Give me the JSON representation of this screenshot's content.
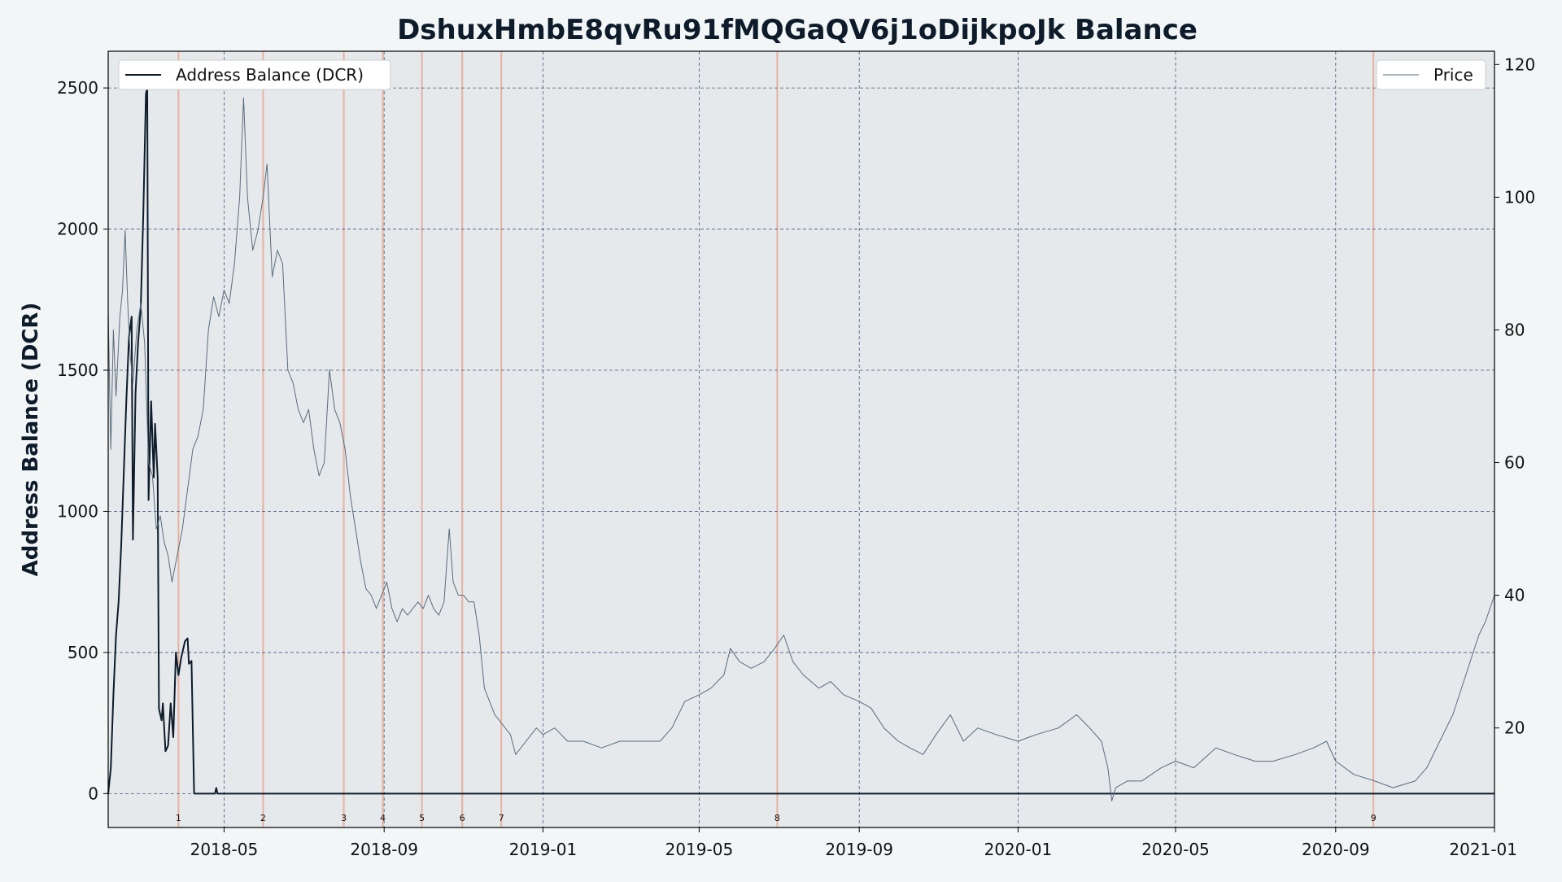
{
  "chart_data": {
    "type": "line",
    "title": "DshuxHmbE8qvRu91fMQGaQV6j1oDijkpoJk Balance",
    "ylabel": "Address Balance (DCR)",
    "y2label": "",
    "xlim": [
      "2018-02-01",
      "2021-01-01"
    ],
    "ylim": [
      -120,
      2630
    ],
    "y2lim": [
      5,
      122
    ],
    "grid": true,
    "x_ticks": [
      "2018-05",
      "2018-09",
      "2019-01",
      "2019-05",
      "2019-09",
      "2020-01",
      "2020-05",
      "2020-09",
      "2021-01"
    ],
    "y_ticks": [
      "0",
      "500",
      "1000",
      "1500",
      "2000",
      "2500"
    ],
    "y2_ticks": [
      "20",
      "40",
      "60",
      "80",
      "100",
      "120"
    ],
    "legend_left": "top-left",
    "legend_right": "top-right",
    "colors": {
      "balance": "#0d1b2a",
      "price": "#5a6b7c",
      "event": "#e8a48c",
      "plot_bg": "#e5e9ec",
      "grid": "#4a5a7a"
    },
    "series": [
      {
        "name": "Address Balance (DCR)",
        "axis": "left",
        "points": [
          [
            "2018-02-01",
            0
          ],
          [
            "2018-02-03",
            90
          ],
          [
            "2018-02-05",
            350
          ],
          [
            "2018-02-07",
            560
          ],
          [
            "2018-02-09",
            680
          ],
          [
            "2018-02-11",
            880
          ],
          [
            "2018-02-13",
            1140
          ],
          [
            "2018-02-15",
            1400
          ],
          [
            "2018-02-17",
            1620
          ],
          [
            "2018-02-19",
            1690
          ],
          [
            "2018-02-20",
            900
          ],
          [
            "2018-02-22",
            1420
          ],
          [
            "2018-02-24",
            1600
          ],
          [
            "2018-02-26",
            1720
          ],
          [
            "2018-02-28",
            2060
          ],
          [
            "2018-03-02",
            2480
          ],
          [
            "2018-03-03",
            2500
          ],
          [
            "2018-03-04",
            1040
          ],
          [
            "2018-03-06",
            1390
          ],
          [
            "2018-03-08",
            1120
          ],
          [
            "2018-03-09",
            1310
          ],
          [
            "2018-03-11",
            1120
          ],
          [
            "2018-03-12",
            300
          ],
          [
            "2018-03-14",
            260
          ],
          [
            "2018-03-15",
            320
          ],
          [
            "2018-03-17",
            150
          ],
          [
            "2018-03-19",
            170
          ],
          [
            "2018-03-21",
            320
          ],
          [
            "2018-03-23",
            200
          ],
          [
            "2018-03-25",
            500
          ],
          [
            "2018-03-27",
            420
          ],
          [
            "2018-03-29",
            480
          ],
          [
            "2018-04-01",
            540
          ],
          [
            "2018-04-03",
            550
          ],
          [
            "2018-04-04",
            460
          ],
          [
            "2018-04-06",
            470
          ],
          [
            "2018-04-08",
            0
          ],
          [
            "2018-04-24",
            0
          ],
          [
            "2018-04-25",
            20
          ],
          [
            "2018-04-26",
            0
          ],
          [
            "2021-01-01",
            0
          ]
        ]
      },
      {
        "name": "Price",
        "axis": "right",
        "points": [
          [
            "2018-02-01",
            83
          ],
          [
            "2018-02-03",
            62
          ],
          [
            "2018-02-05",
            80
          ],
          [
            "2018-02-07",
            70
          ],
          [
            "2018-02-10",
            82
          ],
          [
            "2018-02-12",
            86
          ],
          [
            "2018-02-14",
            95
          ],
          [
            "2018-02-16",
            84
          ],
          [
            "2018-02-18",
            76
          ],
          [
            "2018-02-20",
            72
          ],
          [
            "2018-02-23",
            80
          ],
          [
            "2018-02-26",
            84
          ],
          [
            "2018-03-01",
            78
          ],
          [
            "2018-03-04",
            60
          ],
          [
            "2018-03-07",
            58
          ],
          [
            "2018-03-10",
            50
          ],
          [
            "2018-03-13",
            52
          ],
          [
            "2018-03-16",
            48
          ],
          [
            "2018-03-19",
            46
          ],
          [
            "2018-03-22",
            42
          ],
          [
            "2018-03-26",
            46
          ],
          [
            "2018-03-30",
            50
          ],
          [
            "2018-04-03",
            56
          ],
          [
            "2018-04-07",
            62
          ],
          [
            "2018-04-11",
            64
          ],
          [
            "2018-04-15",
            68
          ],
          [
            "2018-04-19",
            80
          ],
          [
            "2018-04-23",
            85
          ],
          [
            "2018-04-27",
            82
          ],
          [
            "2018-05-01",
            86
          ],
          [
            "2018-05-05",
            84
          ],
          [
            "2018-05-09",
            90
          ],
          [
            "2018-05-13",
            100
          ],
          [
            "2018-05-16",
            115
          ],
          [
            "2018-05-19",
            100
          ],
          [
            "2018-05-23",
            92
          ],
          [
            "2018-05-27",
            95
          ],
          [
            "2018-05-31",
            100
          ],
          [
            "2018-06-03",
            105
          ],
          [
            "2018-06-07",
            88
          ],
          [
            "2018-06-11",
            92
          ],
          [
            "2018-06-15",
            90
          ],
          [
            "2018-06-19",
            74
          ],
          [
            "2018-06-23",
            72
          ],
          [
            "2018-06-27",
            68
          ],
          [
            "2018-07-01",
            66
          ],
          [
            "2018-07-05",
            68
          ],
          [
            "2018-07-09",
            62
          ],
          [
            "2018-07-13",
            58
          ],
          [
            "2018-07-17",
            60
          ],
          [
            "2018-07-21",
            74
          ],
          [
            "2018-07-25",
            68
          ],
          [
            "2018-07-29",
            66
          ],
          [
            "2018-08-02",
            62
          ],
          [
            "2018-08-06",
            55
          ],
          [
            "2018-08-10",
            50
          ],
          [
            "2018-08-14",
            45
          ],
          [
            "2018-08-18",
            41
          ],
          [
            "2018-08-22",
            40
          ],
          [
            "2018-08-26",
            38
          ],
          [
            "2018-08-30",
            40
          ],
          [
            "2018-09-03",
            42
          ],
          [
            "2018-09-07",
            38
          ],
          [
            "2018-09-11",
            36
          ],
          [
            "2018-09-15",
            38
          ],
          [
            "2018-09-19",
            37
          ],
          [
            "2018-09-23",
            38
          ],
          [
            "2018-09-27",
            39
          ],
          [
            "2018-10-01",
            38
          ],
          [
            "2018-10-05",
            40
          ],
          [
            "2018-10-09",
            38
          ],
          [
            "2018-10-13",
            37
          ],
          [
            "2018-10-17",
            39
          ],
          [
            "2018-10-21",
            50
          ],
          [
            "2018-10-24",
            42
          ],
          [
            "2018-10-28",
            40
          ],
          [
            "2018-11-01",
            40
          ],
          [
            "2018-11-05",
            39
          ],
          [
            "2018-11-09",
            39
          ],
          [
            "2018-11-13",
            34
          ],
          [
            "2018-11-17",
            26
          ],
          [
            "2018-11-21",
            24
          ],
          [
            "2018-11-25",
            22
          ],
          [
            "2018-11-29",
            21
          ],
          [
            "2018-12-03",
            20
          ],
          [
            "2018-12-07",
            19
          ],
          [
            "2018-12-11",
            16
          ],
          [
            "2018-12-15",
            17
          ],
          [
            "2018-12-19",
            18
          ],
          [
            "2018-12-23",
            19
          ],
          [
            "2018-12-27",
            20
          ],
          [
            "2019-01-01",
            19
          ],
          [
            "2019-01-10",
            20
          ],
          [
            "2019-01-20",
            18
          ],
          [
            "2019-02-01",
            18
          ],
          [
            "2019-02-15",
            17
          ],
          [
            "2019-03-01",
            18
          ],
          [
            "2019-03-15",
            18
          ],
          [
            "2019-04-01",
            18
          ],
          [
            "2019-04-10",
            20
          ],
          [
            "2019-04-20",
            24
          ],
          [
            "2019-05-01",
            25
          ],
          [
            "2019-05-10",
            26
          ],
          [
            "2019-05-20",
            28
          ],
          [
            "2019-05-25",
            32
          ],
          [
            "2019-06-01",
            30
          ],
          [
            "2019-06-10",
            29
          ],
          [
            "2019-06-20",
            30
          ],
          [
            "2019-06-28",
            32
          ],
          [
            "2019-07-05",
            34
          ],
          [
            "2019-07-12",
            30
          ],
          [
            "2019-07-20",
            28
          ],
          [
            "2019-08-01",
            26
          ],
          [
            "2019-08-10",
            27
          ],
          [
            "2019-08-20",
            25
          ],
          [
            "2019-09-01",
            24
          ],
          [
            "2019-09-10",
            23
          ],
          [
            "2019-09-20",
            20
          ],
          [
            "2019-10-01",
            18
          ],
          [
            "2019-10-10",
            17
          ],
          [
            "2019-10-20",
            16
          ],
          [
            "2019-10-30",
            19
          ],
          [
            "2019-11-10",
            22
          ],
          [
            "2019-11-20",
            18
          ],
          [
            "2019-12-01",
            20
          ],
          [
            "2019-12-15",
            19
          ],
          [
            "2020-01-01",
            18
          ],
          [
            "2020-01-15",
            19
          ],
          [
            "2020-02-01",
            20
          ],
          [
            "2020-02-15",
            22
          ],
          [
            "2020-02-25",
            20
          ],
          [
            "2020-03-05",
            18
          ],
          [
            "2020-03-10",
            14
          ],
          [
            "2020-03-13",
            9
          ],
          [
            "2020-03-16",
            11
          ],
          [
            "2020-03-25",
            12
          ],
          [
            "2020-04-05",
            12
          ],
          [
            "2020-04-20",
            14
          ],
          [
            "2020-05-01",
            15
          ],
          [
            "2020-05-15",
            14
          ],
          [
            "2020-06-01",
            17
          ],
          [
            "2020-06-15",
            16
          ],
          [
            "2020-07-01",
            15
          ],
          [
            "2020-07-15",
            15
          ],
          [
            "2020-08-01",
            16
          ],
          [
            "2020-08-15",
            17
          ],
          [
            "2020-08-25",
            18
          ],
          [
            "2020-09-01",
            15
          ],
          [
            "2020-09-15",
            13
          ],
          [
            "2020-10-01",
            12
          ],
          [
            "2020-10-15",
            11
          ],
          [
            "2020-11-01",
            12
          ],
          [
            "2020-11-10",
            14
          ],
          [
            "2020-11-20",
            18
          ],
          [
            "2020-11-30",
            22
          ],
          [
            "2020-12-10",
            28
          ],
          [
            "2020-12-15",
            31
          ],
          [
            "2020-12-20",
            34
          ],
          [
            "2020-12-25",
            36
          ],
          [
            "2021-01-01",
            40
          ]
        ]
      }
    ],
    "events": [
      {
        "label": "1",
        "date": "2018-03-27"
      },
      {
        "label": "2",
        "date": "2018-05-31"
      },
      {
        "label": "3",
        "date": "2018-08-01"
      },
      {
        "label": "4",
        "date": "2018-08-31"
      },
      {
        "label": "5",
        "date": "2018-09-30"
      },
      {
        "label": "6",
        "date": "2018-10-31"
      },
      {
        "label": "7",
        "date": "2018-11-30"
      },
      {
        "label": "8",
        "date": "2019-06-30"
      },
      {
        "label": "9",
        "date": "2020-09-30"
      }
    ]
  }
}
